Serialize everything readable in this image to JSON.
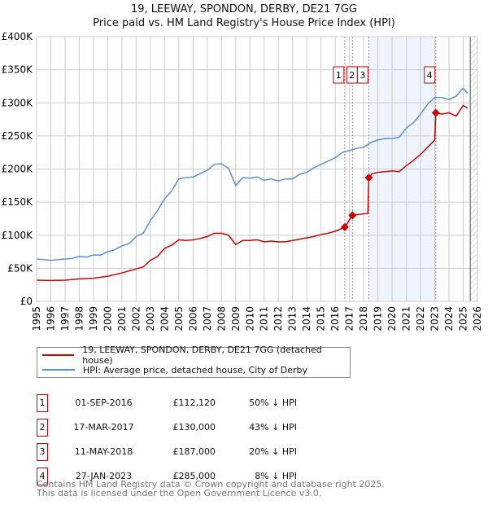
{
  "chart_data": {
    "type": "line",
    "title": "19, LEEWAY, SPONDON, DERBY, DE21 7GG",
    "subtitle": "Price paid vs. HM Land Registry's House Price Index (HPI)",
    "xlim": [
      1995,
      2026
    ],
    "ylim": [
      0,
      400000
    ],
    "x_ticks": [
      "1995",
      "1996",
      "1997",
      "1998",
      "1999",
      "2000",
      "2001",
      "2002",
      "2003",
      "2004",
      "2005",
      "2006",
      "2007",
      "2008",
      "2009",
      "2010",
      "2011",
      "2012",
      "2013",
      "2014",
      "2015",
      "2016",
      "2017",
      "2018",
      "2019",
      "2020",
      "2021",
      "2022",
      "2023",
      "2024",
      "2025",
      "2026"
    ],
    "y_ticks": [
      {
        "v": 0,
        "label": "£0"
      },
      {
        "v": 50000,
        "label": "£50K"
      },
      {
        "v": 100000,
        "label": "£100K"
      },
      {
        "v": 150000,
        "label": "£150K"
      },
      {
        "v": 200000,
        "label": "£200K"
      },
      {
        "v": 250000,
        "label": "£250K"
      },
      {
        "v": 300000,
        "label": "£300K"
      },
      {
        "v": 350000,
        "label": "£350K"
      },
      {
        "v": 400000,
        "label": "£400K"
      }
    ],
    "grid": true,
    "shaded_range": [
      2018.36,
      2023.07
    ],
    "hatched_from": 2025.5,
    "series": [
      {
        "name": "19, LEEWAY, SPONDON, DERBY, DE21 7GG (detached house)",
        "color": "#cc0000",
        "points": [
          [
            1995,
            32
          ],
          [
            1996,
            31.5
          ],
          [
            1997,
            32
          ],
          [
            1998,
            34
          ],
          [
            1999,
            35
          ],
          [
            2000,
            38
          ],
          [
            2001,
            43
          ],
          [
            2002,
            49
          ],
          [
            2002.5,
            52
          ],
          [
            2003,
            62
          ],
          [
            2003.5,
            68
          ],
          [
            2004,
            80
          ],
          [
            2004.5,
            85
          ],
          [
            2005,
            93
          ],
          [
            2005.5,
            92
          ],
          [
            2006,
            93
          ],
          [
            2006.5,
            95
          ],
          [
            2007,
            98
          ],
          [
            2007.5,
            103
          ],
          [
            2008,
            103
          ],
          [
            2008.5,
            100
          ],
          [
            2009,
            86
          ],
          [
            2009.5,
            92
          ],
          [
            2010,
            92
          ],
          [
            2010.5,
            93
          ],
          [
            2011,
            90
          ],
          [
            2011.5,
            91
          ],
          [
            2012,
            90
          ],
          [
            2012.5,
            90
          ],
          [
            2013,
            92
          ],
          [
            2013.5,
            94
          ],
          [
            2014,
            96
          ],
          [
            2014.5,
            98
          ],
          [
            2015,
            101
          ],
          [
            2015.5,
            103
          ],
          [
            2016,
            106
          ],
          [
            2016.67,
            112.12
          ],
          [
            2017.21,
            130
          ],
          [
            2017.5,
            131
          ],
          [
            2018.3,
            133
          ],
          [
            2018.36,
            187
          ],
          [
            2018.6,
            193
          ],
          [
            2019,
            195
          ],
          [
            2019.5,
            196
          ],
          [
            2020,
            197
          ],
          [
            2020.5,
            196
          ],
          [
            2021,
            205
          ],
          [
            2021.5,
            213
          ],
          [
            2022,
            222
          ],
          [
            2022.5,
            233
          ],
          [
            2023.0,
            244
          ],
          [
            2023.07,
            285
          ],
          [
            2023.5,
            283
          ],
          [
            2024,
            285
          ],
          [
            2024.5,
            280
          ],
          [
            2025,
            296
          ],
          [
            2025.3,
            292
          ]
        ]
      },
      {
        "name": "HPI: Average price, detached house, City of Derby",
        "color": "#5b8ed6",
        "points": [
          [
            1995,
            64
          ],
          [
            1995.5,
            63
          ],
          [
            1996,
            62
          ],
          [
            1996.5,
            63
          ],
          [
            1997,
            64
          ],
          [
            1997.5,
            65
          ],
          [
            1998,
            68
          ],
          [
            1998.5,
            67
          ],
          [
            1999,
            70
          ],
          [
            1999.5,
            70
          ],
          [
            2000,
            75
          ],
          [
            2000.5,
            78
          ],
          [
            2001,
            84
          ],
          [
            2001.5,
            87
          ],
          [
            2002,
            98
          ],
          [
            2002.5,
            103
          ],
          [
            2003,
            122
          ],
          [
            2003.5,
            137
          ],
          [
            2004,
            155
          ],
          [
            2004.5,
            167
          ],
          [
            2005,
            185
          ],
          [
            2005.5,
            187
          ],
          [
            2006,
            188
          ],
          [
            2006.5,
            193
          ],
          [
            2007,
            198
          ],
          [
            2007.5,
            207
          ],
          [
            2008,
            208
          ],
          [
            2008.5,
            201
          ],
          [
            2009,
            175
          ],
          [
            2009.5,
            187
          ],
          [
            2010,
            186
          ],
          [
            2010.5,
            188
          ],
          [
            2011,
            183
          ],
          [
            2011.5,
            185
          ],
          [
            2012,
            182
          ],
          [
            2012.5,
            185
          ],
          [
            2013,
            185
          ],
          [
            2013.5,
            192
          ],
          [
            2014,
            195
          ],
          [
            2014.5,
            202
          ],
          [
            2015,
            207
          ],
          [
            2015.5,
            212
          ],
          [
            2016,
            217
          ],
          [
            2016.5,
            225
          ],
          [
            2017,
            228
          ],
          [
            2017.5,
            231
          ],
          [
            2018,
            233
          ],
          [
            2018.5,
            240
          ],
          [
            2019,
            244
          ],
          [
            2019.5,
            246
          ],
          [
            2020,
            246
          ],
          [
            2020.5,
            248
          ],
          [
            2021,
            262
          ],
          [
            2021.5,
            270
          ],
          [
            2022,
            283
          ],
          [
            2022.5,
            298
          ],
          [
            2023,
            308
          ],
          [
            2023.5,
            308
          ],
          [
            2024,
            305
          ],
          [
            2024.5,
            310
          ],
          [
            2025,
            322
          ],
          [
            2025.3,
            315
          ]
        ]
      }
    ],
    "sales": [
      {
        "n": "1",
        "x": 2016.67,
        "price": 112120,
        "date": "01-SEP-2016",
        "price_label": "£112,120",
        "hpi": "50% ↓ HPI"
      },
      {
        "n": "2",
        "x": 2017.21,
        "price": 130000,
        "date": "17-MAR-2017",
        "price_label": "£130,000",
        "hpi": "43% ↓ HPI"
      },
      {
        "n": "3",
        "x": 2018.36,
        "price": 187000,
        "date": "11-MAY-2018",
        "price_label": "£187,000",
        "hpi": "20% ↓ HPI"
      },
      {
        "n": "4",
        "x": 2023.07,
        "price": 285000,
        "date": "27-JAN-2023",
        "price_label": "£285,000",
        "hpi": "8% ↓ HPI"
      }
    ]
  },
  "footer": {
    "line1": "Contains HM Land Registry data © Crown copyright and database right 2025.",
    "line2": "This data is licensed under the Open Government Licence v3.0."
  }
}
